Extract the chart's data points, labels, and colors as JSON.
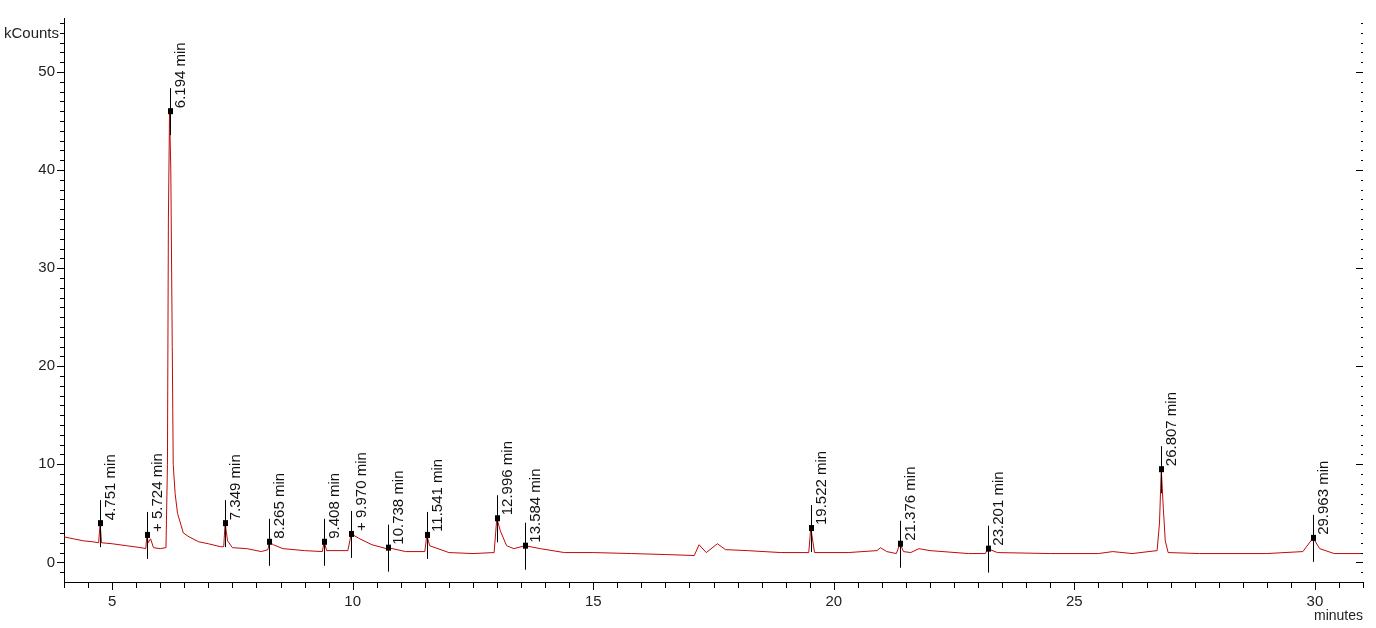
{
  "chart_data": {
    "type": "line",
    "xlabel": "minutes",
    "ylabel": "kCounts",
    "x": [
      4.0,
      4.2,
      4.4,
      4.6,
      4.72,
      4.751,
      4.78,
      5.0,
      5.3,
      5.6,
      5.7,
      5.724,
      5.75,
      5.8,
      5.86,
      6.0,
      6.12,
      6.15,
      6.17,
      6.194,
      6.22,
      6.25,
      6.27,
      6.31,
      6.36,
      6.48,
      6.6,
      6.8,
      7.0,
      7.25,
      7.32,
      7.349,
      7.4,
      7.5,
      7.8,
      8.1,
      8.24,
      8.265,
      8.35,
      8.55,
      9.0,
      9.37,
      9.408,
      9.46,
      9.9,
      9.97,
      10.15,
      10.4,
      10.7,
      10.738,
      11.1,
      11.5,
      11.541,
      11.6,
      12.0,
      12.5,
      12.94,
      12.996,
      13.07,
      13.2,
      13.35,
      13.584,
      13.9,
      14.4,
      15.0,
      15.8,
      16.5,
      17.1,
      17.2,
      17.35,
      17.58,
      17.75,
      18.2,
      18.9,
      19.48,
      19.522,
      19.6,
      20.3,
      20.9,
      20.97,
      21.1,
      21.3,
      21.376,
      21.45,
      21.6,
      21.77,
      22.0,
      22.8,
      23.15,
      23.201,
      23.4,
      24.5,
      25.5,
      25.8,
      26.2,
      26.72,
      26.77,
      26.807,
      26.85,
      26.89,
      26.95,
      27.6,
      29.0,
      29.75,
      29.963,
      30.1,
      30.4,
      31.0
    ],
    "values": [
      2.6,
      2.4,
      2.2,
      2.1,
      2.0,
      4.0,
      2.0,
      1.9,
      1.7,
      1.5,
      1.4,
      2.8,
      2.0,
      2.4,
      1.5,
      1.4,
      1.5,
      10,
      35,
      46.0,
      40,
      22,
      10,
      7,
      5,
      3.0,
      2.6,
      2.1,
      1.9,
      1.6,
      1.6,
      4.0,
      2.2,
      1.5,
      1.4,
      1.1,
      1.3,
      2.1,
      1.8,
      1.4,
      1.2,
      1.1,
      2.1,
      1.2,
      1.2,
      2.9,
      2.4,
      1.8,
      1.4,
      1.5,
      1.1,
      1.1,
      2.8,
      1.7,
      1.0,
      0.9,
      1.0,
      4.5,
      3.2,
      1.7,
      1.4,
      1.7,
      1.4,
      1.0,
      1.0,
      0.9,
      0.8,
      0.7,
      1.8,
      1.0,
      1.9,
      1.3,
      1.2,
      1.0,
      1.0,
      3.5,
      1.0,
      1.0,
      1.2,
      1.5,
      1.1,
      0.9,
      1.9,
      1.1,
      1.0,
      1.4,
      1.2,
      0.9,
      0.9,
      1.4,
      1.0,
      0.9,
      0.9,
      1.1,
      0.9,
      1.2,
      4.0,
      9.5,
      5.5,
      2.2,
      1.0,
      0.9,
      0.9,
      1.1,
      2.5,
      1.4,
      0.9,
      0.9
    ],
    "color": "#c00a0a",
    "marker": "none",
    "legend": false,
    "grid": false,
    "xlim": [
      4,
      31
    ],
    "xticks": [
      {
        "value": 4,
        "label": null
      },
      {
        "value": 4.5,
        "label": null
      },
      5,
      {
        "value": 5.5,
        "label": null
      },
      {
        "value": 6,
        "label": null
      },
      {
        "value": 6.5,
        "label": null
      },
      {
        "value": 7,
        "label": null
      },
      {
        "value": 7.5,
        "label": null
      },
      {
        "value": 8,
        "label": null
      },
      {
        "value": 8.5,
        "label": null
      },
      {
        "value": 9,
        "label": null
      },
      {
        "value": 9.5,
        "label": null
      },
      10,
      {
        "value": 10.5,
        "label": null
      },
      {
        "value": 11,
        "label": null
      },
      {
        "value": 11.5,
        "label": null
      },
      {
        "value": 12,
        "label": null
      },
      {
        "value": 12.5,
        "label": null
      },
      {
        "value": 13,
        "label": null
      },
      {
        "value": 13.5,
        "label": null
      },
      {
        "value": 14,
        "label": null
      },
      {
        "value": 14.5,
        "label": null
      },
      15,
      {
        "value": 15.5,
        "label": null
      },
      {
        "value": 16,
        "label": null
      },
      {
        "value": 16.5,
        "label": null
      },
      {
        "value": 17,
        "label": null
      },
      {
        "value": 17.5,
        "label": null
      },
      {
        "value": 18,
        "label": null
      },
      {
        "value": 18.5,
        "label": null
      },
      {
        "value": 19,
        "label": null
      },
      {
        "value": 19.5,
        "label": null
      },
      20,
      {
        "value": 20.5,
        "label": null
      },
      {
        "value": 21,
        "label": null
      },
      {
        "value": 21.5,
        "label": null
      },
      {
        "value": 22,
        "label": null
      },
      {
        "value": 22.5,
        "label": null
      },
      {
        "value": 23,
        "label": null
      },
      {
        "value": 23.5,
        "label": null
      },
      {
        "value": 24,
        "label": null
      },
      {
        "value": 24.5,
        "label": null
      },
      25,
      {
        "value": 25.5,
        "label": null
      },
      {
        "value": 26,
        "label": null
      },
      {
        "value": 26.5,
        "label": null
      },
      {
        "value": 27,
        "label": null
      },
      {
        "value": 27.5,
        "label": null
      },
      {
        "value": 28,
        "label": null
      },
      {
        "value": 28.5,
        "label": null
      },
      {
        "value": 29,
        "label": null
      },
      {
        "value": 29.5,
        "label": null
      },
      30,
      {
        "value": 30.5,
        "label": null
      },
      {
        "value": 31,
        "label": null
      }
    ],
    "ylim": [
      -2,
      55.5
    ],
    "yticks": [
      {
        "value": -1,
        "label": null
      },
      0,
      {
        "value": 1,
        "label": null
      },
      {
        "value": 2,
        "label": null
      },
      {
        "value": 3,
        "label": null
      },
      {
        "value": 4,
        "label": null
      },
      {
        "value": 5,
        "label": null
      },
      {
        "value": 6,
        "label": null
      },
      {
        "value": 7,
        "label": null
      },
      {
        "value": 8,
        "label": null
      },
      {
        "value": 9,
        "label": null
      },
      10,
      {
        "value": 11,
        "label": null
      },
      {
        "value": 12,
        "label": null
      },
      {
        "value": 13,
        "label": null
      },
      {
        "value": 14,
        "label": null
      },
      {
        "value": 15,
        "label": null
      },
      {
        "value": 16,
        "label": null
      },
      {
        "value": 17,
        "label": null
      },
      {
        "value": 18,
        "label": null
      },
      {
        "value": 19,
        "label": null
      },
      20,
      {
        "value": 21,
        "label": null
      },
      {
        "value": 22,
        "label": null
      },
      {
        "value": 23,
        "label": null
      },
      {
        "value": 24,
        "label": null
      },
      {
        "value": 25,
        "label": null
      },
      {
        "value": 26,
        "label": null
      },
      {
        "value": 27,
        "label": null
      },
      {
        "value": 28,
        "label": null
      },
      {
        "value": 29,
        "label": null
      },
      30,
      {
        "value": 31,
        "label": null
      },
      {
        "value": 32,
        "label": null
      },
      {
        "value": 33,
        "label": null
      },
      {
        "value": 34,
        "label": null
      },
      {
        "value": 35,
        "label": null
      },
      {
        "value": 36,
        "label": null
      },
      {
        "value": 37,
        "label": null
      },
      {
        "value": 38,
        "label": null
      },
      {
        "value": 39,
        "label": null
      },
      40,
      {
        "value": 41,
        "label": null
      },
      {
        "value": 42,
        "label": null
      },
      {
        "value": 43,
        "label": null
      },
      {
        "value": 44,
        "label": null
      },
      {
        "value": 45,
        "label": null
      },
      {
        "value": 46,
        "label": null
      },
      {
        "value": 47,
        "label": null
      },
      {
        "value": 48,
        "label": null
      },
      {
        "value": 49,
        "label": null
      },
      50,
      {
        "value": 51,
        "label": null
      },
      {
        "value": 52,
        "label": null
      },
      {
        "value": 53,
        "label": null
      },
      {
        "value": 54,
        "label": null
      },
      {
        "value": 55,
        "label": null
      }
    ],
    "annotations": [
      {
        "text": "4.751 min",
        "x": 4.751,
        "y": 4.0
      },
      {
        "text": "+ 5.724 min",
        "x": 5.724,
        "y": 2.8
      },
      {
        "text": "6.194 min",
        "x": 6.194,
        "y": 46.0
      },
      {
        "text": "7.349 min",
        "x": 7.349,
        "y": 4.0
      },
      {
        "text": "8.265 min",
        "x": 8.265,
        "y": 2.1
      },
      {
        "text": "9.408 min",
        "x": 9.408,
        "y": 2.1
      },
      {
        "text": "+ 9.970 min",
        "x": 9.97,
        "y": 2.9
      },
      {
        "text": "10.738 min",
        "x": 10.738,
        "y": 1.5
      },
      {
        "text": "11.541 min",
        "x": 11.541,
        "y": 2.8
      },
      {
        "text": "12.996 min",
        "x": 12.996,
        "y": 4.5
      },
      {
        "text": "13.584 min",
        "x": 13.584,
        "y": 1.7
      },
      {
        "text": "19.522 min",
        "x": 19.522,
        "y": 3.5
      },
      {
        "text": "21.376 min",
        "x": 21.376,
        "y": 1.9
      },
      {
        "text": "23.201 min",
        "x": 23.201,
        "y": 1.4
      },
      {
        "text": "26.807 min",
        "x": 26.807,
        "y": 9.5
      },
      {
        "text": "29.963 min",
        "x": 29.963,
        "y": 2.5
      }
    ]
  }
}
